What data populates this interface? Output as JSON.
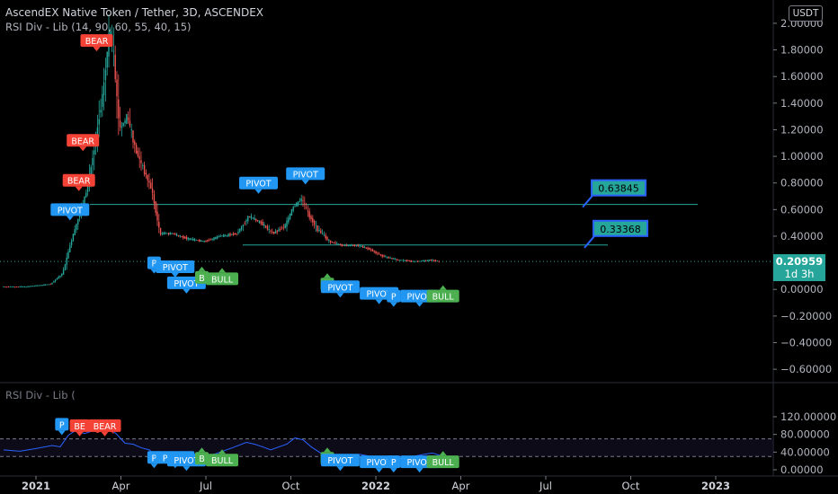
{
  "header": {
    "title": "AscendEX Native Token / Tether, 3D, ASCENDEX",
    "indicator": "RSI Div - Lib (14, 90, 60, 55, 40, 15)"
  },
  "currency_badge": "USDT",
  "last_price": {
    "value": "0.20959",
    "countdown": "1d 3h"
  },
  "rsi_pane_label": "RSI Div - Lib (",
  "colors": {
    "background": "#000000",
    "bull_candle": "#26a69a",
    "bear_candle": "#ef5350",
    "pivot_label": "#2196f3",
    "bear_label": "#f44336",
    "bull_label": "#4caf50",
    "level_line": "#26a69a",
    "rsi_line": "#2962ff"
  },
  "chart_data": {
    "type": "candlestick",
    "x_axis_ticks": [
      "2021",
      "Apr",
      "Jul",
      "Oct",
      "2022",
      "Apr",
      "Jul",
      "Oct",
      "2023"
    ],
    "price_axis_ticks": [
      "2.00000",
      "1.80000",
      "1.60000",
      "1.40000",
      "1.20000",
      "1.00000",
      "0.80000",
      "0.60000",
      "0.40000",
      "0.20000",
      "0.00000",
      "−0.20000",
      "−0.40000",
      "−0.60000"
    ],
    "price_ylim": [
      -0.66,
      2.04
    ],
    "price_path": [
      [
        0,
        0.02
      ],
      [
        3,
        0.02
      ],
      [
        6,
        0.04
      ],
      [
        7.5,
        0.12
      ],
      [
        8.5,
        0.35
      ],
      [
        9.5,
        0.55
      ],
      [
        10.5,
        0.75
      ],
      [
        11.5,
        1.1
      ],
      [
        12.5,
        1.5
      ],
      [
        13.3,
        1.95
      ],
      [
        13.8,
        1.75
      ],
      [
        14.5,
        1.2
      ],
      [
        15.5,
        1.3
      ],
      [
        16.5,
        1.05
      ],
      [
        17.5,
        0.9
      ],
      [
        18.5,
        0.75
      ],
      [
        19.5,
        0.42
      ],
      [
        21,
        0.42
      ],
      [
        23,
        0.38
      ],
      [
        25,
        0.36
      ],
      [
        27,
        0.4
      ],
      [
        29,
        0.42
      ],
      [
        30.5,
        0.55
      ],
      [
        32,
        0.5
      ],
      [
        33.5,
        0.42
      ],
      [
        35,
        0.48
      ],
      [
        36,
        0.62
      ],
      [
        37,
        0.68
      ],
      [
        38,
        0.55
      ],
      [
        39,
        0.45
      ],
      [
        40.5,
        0.36
      ],
      [
        42,
        0.33
      ],
      [
        44,
        0.33
      ],
      [
        45.5,
        0.3
      ],
      [
        47,
        0.25
      ],
      [
        49,
        0.22
      ],
      [
        51,
        0.21
      ],
      [
        53,
        0.22
      ],
      [
        54,
        0.21
      ]
    ],
    "levels": [
      {
        "value": 0.63845,
        "label": "0.63845"
      },
      {
        "value": 0.33368,
        "label": "0.33368"
      }
    ],
    "price_annotations": [
      {
        "label": "BEAR",
        "type": "bear",
        "x": 11.5,
        "y": 1.87
      },
      {
        "label": "BEAR",
        "type": "bear",
        "x": 9.8,
        "y": 1.12
      },
      {
        "label": "BEAR",
        "type": "bear",
        "x": 9.3,
        "y": 0.82
      },
      {
        "label": "PIVOT",
        "type": "pivot",
        "x": 8.2,
        "y": 0.6
      },
      {
        "label": "PIVOT",
        "type": "pivot",
        "x": 31.5,
        "y": 0.8
      },
      {
        "label": "PIVOT",
        "type": "pivot",
        "x": 37.3,
        "y": 0.87
      },
      {
        "label": "P",
        "type": "pivot",
        "x": 18.6,
        "y": 0.2
      },
      {
        "label": "PIVOT",
        "type": "pivot",
        "x": 21.2,
        "y": 0.17
      },
      {
        "label": "PIVOT",
        "type": "pivot",
        "x": 22.6,
        "y": 0.05
      },
      {
        "label": "B",
        "type": "bull",
        "x": 24.5,
        "y": 0.09
      },
      {
        "label": "BULL",
        "type": "bull",
        "x": 27,
        "y": 0.08
      },
      {
        "label": "B",
        "type": "bull",
        "x": 40,
        "y": 0.04
      },
      {
        "label": "PIVOT",
        "type": "pivot",
        "x": 41.6,
        "y": 0.02
      },
      {
        "label": "PIVOT",
        "type": "pivot",
        "x": 46.4,
        "y": -0.03
      },
      {
        "label": "P",
        "type": "pivot",
        "x": 48.2,
        "y": -0.05
      },
      {
        "label": "PIVOT",
        "type": "pivot",
        "x": 51.4,
        "y": -0.05
      },
      {
        "label": "BULL",
        "type": "bull",
        "x": 54.3,
        "y": -0.05
      }
    ],
    "rsi_ticks": [
      "120.00000",
      "80.00000",
      "40.00000",
      "0.00000"
    ],
    "rsi_ylim": [
      -4,
      124
    ],
    "rsi_bands": [
      70,
      30
    ],
    "rsi_path": [
      [
        0,
        45
      ],
      [
        2,
        42
      ],
      [
        4,
        48
      ],
      [
        6,
        55
      ],
      [
        7,
        52
      ],
      [
        8,
        78
      ],
      [
        9,
        90
      ],
      [
        10,
        82
      ],
      [
        11,
        88
      ],
      [
        12,
        92
      ],
      [
        13,
        95
      ],
      [
        14,
        80
      ],
      [
        15,
        60
      ],
      [
        16,
        58
      ],
      [
        17,
        50
      ],
      [
        18,
        45
      ],
      [
        19,
        30
      ],
      [
        20,
        32
      ],
      [
        22,
        28
      ],
      [
        24,
        30
      ],
      [
        26,
        35
      ],
      [
        28,
        48
      ],
      [
        30,
        62
      ],
      [
        31,
        58
      ],
      [
        32,
        52
      ],
      [
        33,
        45
      ],
      [
        35,
        58
      ],
      [
        36,
        72
      ],
      [
        37,
        68
      ],
      [
        38,
        52
      ],
      [
        39,
        40
      ],
      [
        40,
        28
      ],
      [
        42,
        30
      ],
      [
        44,
        35
      ],
      [
        46,
        28
      ],
      [
        48,
        30
      ],
      [
        50,
        28
      ],
      [
        52,
        35
      ],
      [
        53,
        38
      ],
      [
        54,
        32
      ]
    ],
    "rsi_annotations": [
      {
        "label": "BE",
        "type": "bear",
        "x": 9.4,
        "y": 100
      },
      {
        "label": "BEAR",
        "type": "bear",
        "x": 12.5,
        "y": 100
      },
      {
        "label": "P",
        "type": "pivot",
        "x": 7.2,
        "y": 103
      },
      {
        "label": "P",
        "type": "pivot",
        "x": 18.6,
        "y": 28
      },
      {
        "label": "PIVOT",
        "type": "pivot",
        "x": 21.2,
        "y": 28
      },
      {
        "label": "PIVOT",
        "type": "pivot",
        "x": 22.6,
        "y": 22
      },
      {
        "label": "B",
        "type": "bull",
        "x": 24.5,
        "y": 26
      },
      {
        "label": "BULL",
        "type": "bull",
        "x": 27,
        "y": 22
      },
      {
        "label": "B",
        "type": "bull",
        "x": 40,
        "y": 26
      },
      {
        "label": "PIVOT",
        "type": "pivot",
        "x": 41.6,
        "y": 22
      },
      {
        "label": "PIVOT",
        "type": "pivot",
        "x": 46.4,
        "y": 18
      },
      {
        "label": "P",
        "type": "pivot",
        "x": 48.2,
        "y": 18
      },
      {
        "label": "PIVOT",
        "type": "pivot",
        "x": 51.4,
        "y": 18
      },
      {
        "label": "BULL",
        "type": "bull",
        "x": 54.3,
        "y": 18
      }
    ]
  }
}
